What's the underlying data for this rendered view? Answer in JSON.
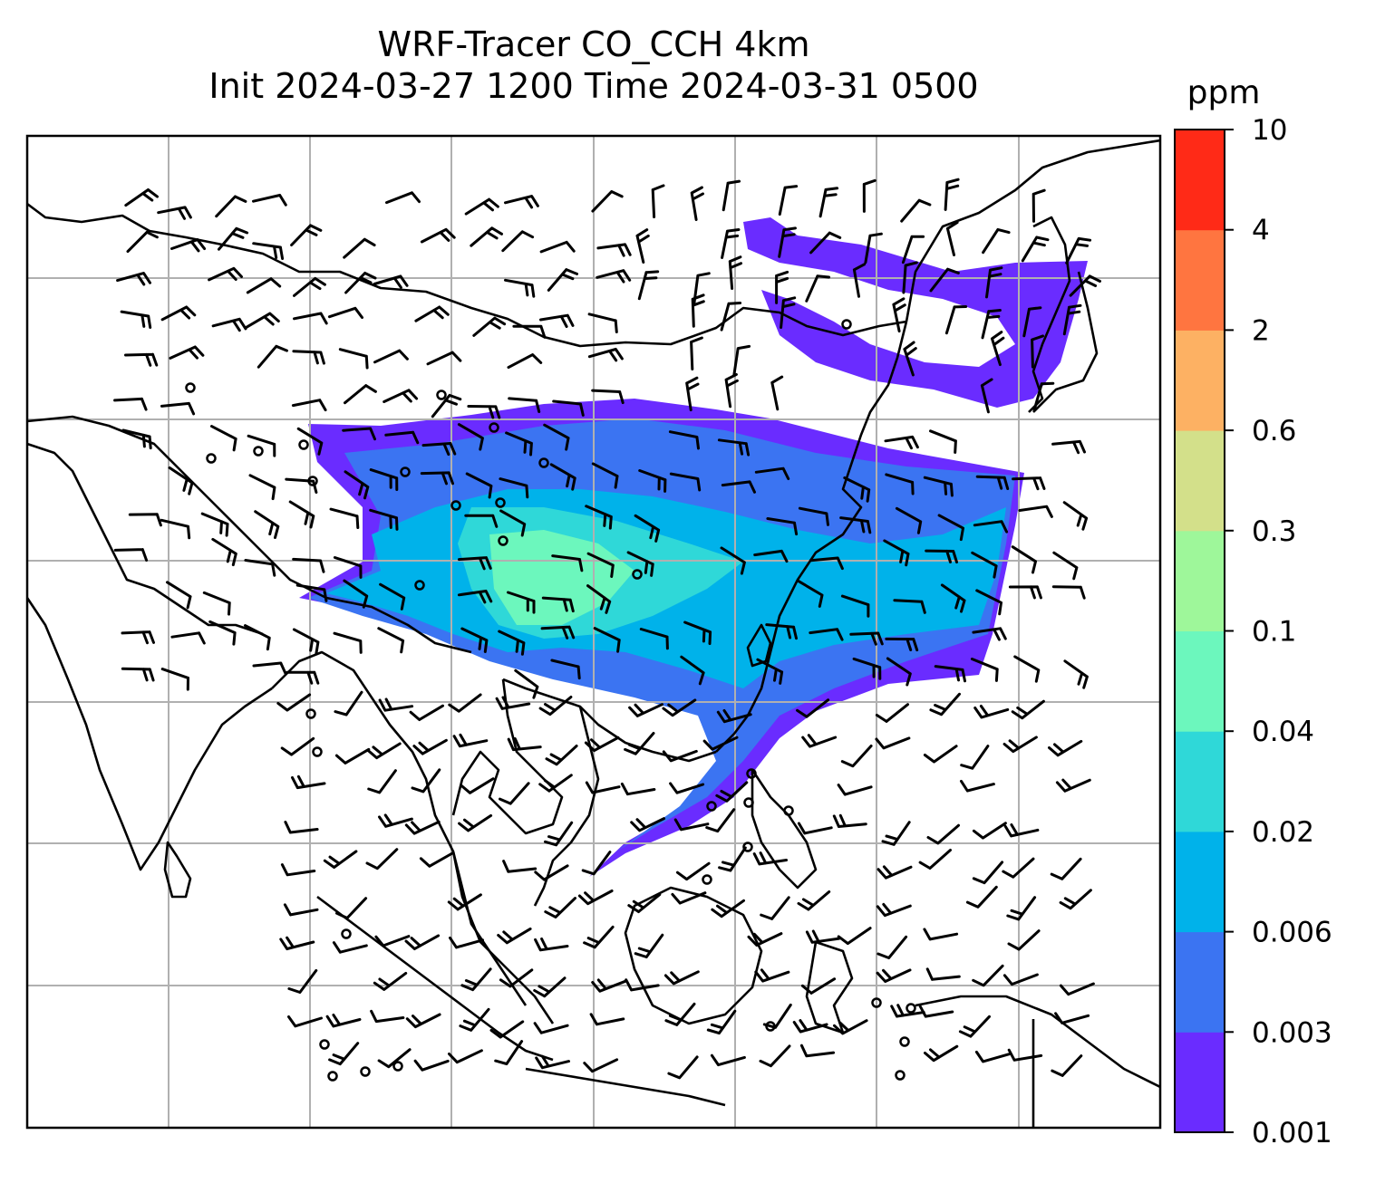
{
  "title_line1": "WRF-Tracer CO_CCH 4km",
  "title_line2": "Init 2024-03-27 1200 Time 2024-03-31 0500",
  "colorbar": {
    "unit": "ppm",
    "levels": [
      "0.001",
      "0.003",
      "0.006",
      "0.02",
      "0.04",
      "0.1",
      "0.3",
      "0.6",
      "2",
      "4",
      "10"
    ],
    "colors": [
      "#6a2cff",
      "#3b74f2",
      "#00b2ea",
      "#2fd8d8",
      "#6cf7bd",
      "#9ef79a",
      "#d3e08a",
      "#fdb163",
      "#ff7540",
      "#ff2a17"
    ]
  },
  "map": {
    "gridlines": true,
    "grid_color": "#b0b0b0",
    "barb_color": "#000000",
    "coast_color": "#000000"
  }
}
